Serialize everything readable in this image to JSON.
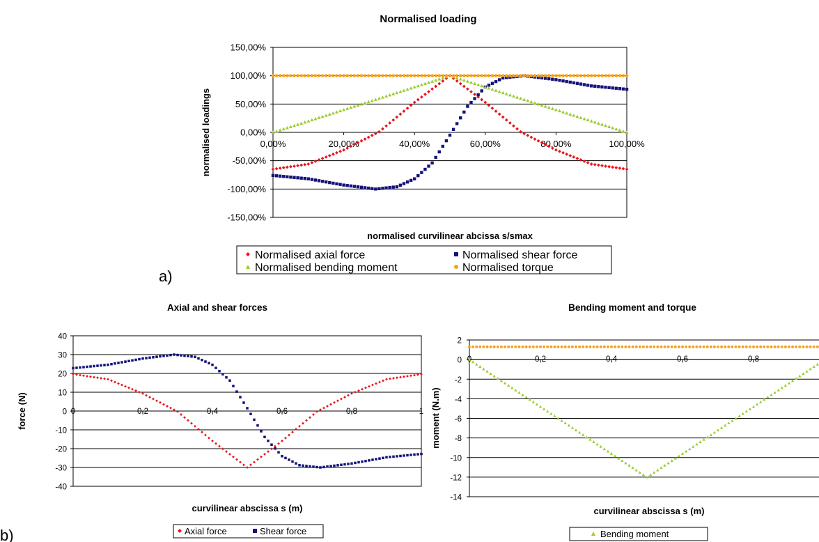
{
  "panel_labels": {
    "a": "a)",
    "b": "b)"
  },
  "colors": {
    "axial": "#e8161b",
    "shear": "#13137a",
    "bending": "#9acd32",
    "torque": "#f7a11a"
  },
  "chart_data": [
    {
      "id": "normalised",
      "type": "scatter",
      "title": "Normalised loading",
      "xlabel": "normalised curvilinear abcissa s/smax",
      "ylabel": "normalised loadings",
      "xlim": [
        0,
        1
      ],
      "ylim": [
        -1.5,
        1.5
      ],
      "xticks": [
        0,
        0.2,
        0.4,
        0.6,
        0.8,
        1.0
      ],
      "xtick_labels": [
        "0,00%",
        "20,00%",
        "40,00%",
        "60,00%",
        "80,00%",
        "100,00%"
      ],
      "yticks": [
        1.5,
        1.0,
        0.5,
        0.0,
        -0.5,
        -1.0,
        -1.5
      ],
      "ytick_labels": [
        "150,00%",
        "100,00%",
        "50,00%",
        "0,00%",
        "-50,00%",
        "-100,00%",
        "-150,00%"
      ],
      "grid": "horizontal",
      "legend": {
        "position": "bottom",
        "columns": 2
      },
      "points_per_series": 101,
      "series": [
        {
          "key": "axial",
          "name": "Normalised axial force",
          "marker": "diamond",
          "x": [
            0,
            0.1,
            0.2,
            0.25,
            0.3,
            0.4,
            0.5,
            0.6,
            0.7,
            0.75,
            0.8,
            0.9,
            1.0
          ],
          "y": [
            -0.65,
            -0.56,
            -0.31,
            -0.15,
            0.01,
            0.53,
            1.0,
            0.53,
            0.01,
            -0.15,
            -0.31,
            -0.56,
            -0.65
          ]
        },
        {
          "key": "shear",
          "name": "Normalised shear force",
          "marker": "square",
          "x": [
            0,
            0.1,
            0.2,
            0.29,
            0.35,
            0.4,
            0.45,
            0.5,
            0.55,
            0.6,
            0.65,
            0.71,
            0.8,
            0.9,
            1.0
          ],
          "y": [
            -0.76,
            -0.82,
            -0.93,
            -1.0,
            -0.96,
            -0.82,
            -0.54,
            -0.05,
            0.46,
            0.8,
            0.96,
            1.0,
            0.93,
            0.82,
            0.76
          ]
        },
        {
          "key": "bending",
          "name": "Normalised bending moment",
          "marker": "triangle",
          "x": [
            0,
            0.5,
            1.0
          ],
          "y": [
            0,
            1.0,
            0
          ]
        },
        {
          "key": "torque",
          "name": "Normalised torque",
          "marker": "circle",
          "x": [
            0,
            1.0
          ],
          "y": [
            1.0,
            1.0
          ]
        }
      ]
    },
    {
      "id": "forces",
      "type": "scatter",
      "title": "Axial and shear forces",
      "xlabel": "curvilinear abscissa s (m)",
      "ylabel": "force (N)",
      "xlim": [
        0,
        1
      ],
      "ylim": [
        -40,
        40
      ],
      "xticks": [
        0,
        0.2,
        0.4,
        0.6,
        0.8,
        1
      ],
      "xtick_labels": [
        "0",
        "0,2",
        "0,4",
        "0,6",
        "0,8",
        "1"
      ],
      "yticks": [
        40,
        30,
        20,
        10,
        0,
        -10,
        -20,
        -30,
        -40
      ],
      "ytick_labels": [
        "40",
        "30",
        "20",
        "10",
        "0",
        "-10",
        "-20",
        "-30",
        "-40"
      ],
      "grid": "horizontal",
      "legend": {
        "position": "bottom",
        "columns": 2
      },
      "points_per_series": 101,
      "series": [
        {
          "key": "axial",
          "name": "Axial force",
          "marker": "diamond",
          "x": [
            0,
            0.1,
            0.2,
            0.25,
            0.3,
            0.4,
            0.5,
            0.6,
            0.7,
            0.75,
            0.8,
            0.9,
            1.0
          ],
          "y": [
            19.6,
            16.9,
            9.3,
            4.5,
            -0.3,
            -15.9,
            -30,
            -15.9,
            -0.3,
            4.5,
            9.3,
            16.9,
            19.6
          ]
        },
        {
          "key": "shear",
          "name": "Shear force",
          "marker": "square",
          "x": [
            0,
            0.1,
            0.2,
            0.29,
            0.35,
            0.4,
            0.45,
            0.5,
            0.55,
            0.6,
            0.65,
            0.71,
            0.8,
            0.9,
            1.0
          ],
          "y": [
            22.8,
            24.6,
            27.9,
            30,
            28.8,
            24.6,
            16.2,
            1.5,
            -13.8,
            -24,
            -28.8,
            -30,
            -27.9,
            -24.6,
            -22.8
          ]
        }
      ]
    },
    {
      "id": "moments",
      "type": "scatter",
      "title": "Bending moment and torque",
      "xlabel": "curvilinear abscissa s (m)",
      "ylabel": "moment (N.m)",
      "xlim": [
        0,
        1
      ],
      "ylim": [
        -14,
        2
      ],
      "xticks": [
        0,
        0.2,
        0.4,
        0.6,
        0.8
      ],
      "xtick_labels": [
        "0",
        "0,2",
        "0,4",
        "0,6",
        "0,8"
      ],
      "yticks": [
        2,
        0,
        -2,
        -4,
        -6,
        -8,
        -10,
        -12,
        -14
      ],
      "ytick_labels": [
        "2",
        "0",
        "-2",
        "-4",
        "-6",
        "-8",
        "-10",
        "-12",
        "-14"
      ],
      "grid": "horizontal",
      "legend": {
        "position": "bottom",
        "columns": 1
      },
      "points_per_series": 101,
      "series": [
        {
          "key": "bending",
          "name": "Bending moment",
          "marker": "triangle",
          "x": [
            0,
            0.5,
            1.0
          ],
          "y": [
            0,
            -12,
            0
          ]
        },
        {
          "key": "torque",
          "name": "",
          "marker": "circle",
          "x": [
            0,
            1.0
          ],
          "y": [
            1.3,
            1.3
          ]
        }
      ]
    }
  ]
}
